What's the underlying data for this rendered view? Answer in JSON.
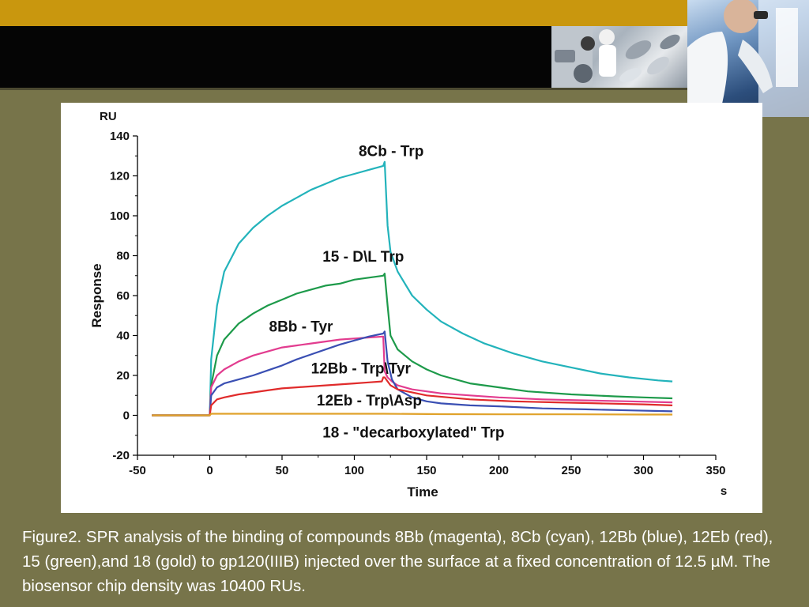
{
  "caption": "Figure2. SPR analysis of the binding of compounds 8Bb (magenta), 8Cb (cyan), 12Bb (blue), 12Eb (red), 15 (green),and 18 (gold) to gp120(IIIB) injected over the surface at a fixed concentration of 12.5 µM. The biosensor chip density was 10400 RUs.",
  "decor": {
    "header_gold": "#c9970e",
    "header_black": "#050505",
    "background": "#77744a"
  },
  "chart_data": {
    "type": "line",
    "ylabel": "Response",
    "xlabel": "Time",
    "y_unit": "RU",
    "x_unit": "s",
    "xlim": [
      -50,
      350
    ],
    "ylim": [
      -20,
      140
    ],
    "xticks": [
      -50,
      0,
      50,
      100,
      150,
      200,
      250,
      300,
      350
    ],
    "yticks": [
      -20,
      0,
      20,
      40,
      60,
      80,
      100,
      120,
      140
    ],
    "grid": false,
    "series": [
      {
        "name": "8Cb - Trp",
        "color": "#23b3bb",
        "x": [
          -40,
          0,
          1,
          5,
          10,
          20,
          30,
          40,
          50,
          60,
          70,
          80,
          90,
          100,
          110,
          120,
          121,
          123,
          125,
          130,
          140,
          150,
          160,
          175,
          190,
          210,
          230,
          250,
          270,
          290,
          310,
          320
        ],
        "y": [
          0,
          0,
          28,
          55,
          72,
          86,
          94,
          100,
          105,
          109,
          113,
          116,
          119,
          121,
          123,
          125,
          127,
          95,
          82,
          72,
          60,
          53,
          47,
          41,
          36,
          31,
          27,
          24,
          21,
          19,
          17.5,
          17
        ]
      },
      {
        "name": "15 - D\\L Trp",
        "color": "#1d9a4a",
        "x": [
          -40,
          0,
          1,
          5,
          10,
          20,
          30,
          40,
          50,
          60,
          70,
          80,
          90,
          100,
          110,
          120,
          121,
          123,
          125,
          130,
          140,
          150,
          160,
          180,
          200,
          220,
          250,
          280,
          300,
          320
        ],
        "y": [
          0,
          0,
          15,
          30,
          38,
          46,
          51,
          55,
          58,
          61,
          63,
          65,
          66,
          68,
          69,
          70,
          71,
          55,
          40,
          33,
          27,
          23,
          20,
          16,
          14,
          12,
          10.5,
          9.5,
          9,
          8.5
        ]
      },
      {
        "name": "8Bb - Tyr",
        "color": "#e23c8f",
        "x": [
          -40,
          0,
          1,
          5,
          10,
          20,
          30,
          40,
          50,
          60,
          70,
          80,
          90,
          100,
          110,
          120,
          121,
          123,
          126,
          130,
          140,
          150,
          160,
          180,
          200,
          230,
          260,
          290,
          320
        ],
        "y": [
          0,
          0,
          14,
          20,
          23,
          27,
          30,
          32,
          34,
          35,
          36,
          37,
          38,
          38.5,
          39,
          39.5,
          22,
          19,
          17,
          15,
          13,
          12,
          11,
          10,
          9,
          8,
          7.5,
          7,
          6.5
        ]
      },
      {
        "name": "12Bb - Trp\\Tyr",
        "color": "#3a4fb3",
        "x": [
          -40,
          0,
          1,
          5,
          10,
          20,
          30,
          40,
          50,
          60,
          70,
          80,
          90,
          100,
          110,
          120,
          121,
          123,
          126,
          130,
          140,
          150,
          160,
          180,
          200,
          230,
          260,
          290,
          320
        ],
        "y": [
          0,
          0,
          10,
          14,
          16,
          18,
          20,
          22.5,
          25,
          28,
          30.5,
          33,
          35.5,
          37.5,
          39.5,
          41,
          42,
          27,
          18,
          13,
          9,
          7,
          6,
          5,
          4.5,
          3.5,
          3,
          2.5,
          2
        ]
      },
      {
        "name": "12Eb - Trp\\Asp",
        "color": "#e02b2b",
        "x": [
          -40,
          0,
          1,
          5,
          10,
          20,
          30,
          40,
          50,
          60,
          70,
          80,
          90,
          100,
          110,
          119,
          120,
          121,
          125,
          130,
          150,
          180,
          210,
          240,
          270,
          300,
          320
        ],
        "y": [
          0,
          0,
          5,
          8,
          9,
          10.5,
          11.5,
          12.5,
          13.5,
          14,
          14.5,
          15,
          15.5,
          16,
          16.5,
          17,
          19,
          19,
          15,
          13,
          10,
          8,
          7,
          6.5,
          6,
          5.5,
          5
        ]
      },
      {
        "name": "18 - \"decarboxylated\" Trp",
        "color": "#e0a22a",
        "x": [
          -40,
          0,
          1,
          50,
          100,
          120,
          160,
          200,
          250,
          300,
          320
        ],
        "y": [
          0,
          0,
          0.8,
          0.8,
          0.8,
          0.8,
          0.6,
          0.5,
          0.5,
          0.4,
          0.4
        ]
      }
    ],
    "annotations": [
      {
        "text": "8Cb - Trp",
        "x": 103,
        "y": 130
      },
      {
        "text": "15 - D\\L Trp",
        "x": 78,
        "y": 77
      },
      {
        "text": "8Bb - Tyr",
        "x": 41,
        "y": 42
      },
      {
        "text": "12Bb - Trp\\Tyr",
        "x": 70,
        "y": 21
      },
      {
        "text": "12Eb - Trp\\Asp",
        "x": 74,
        "y": 5
      },
      {
        "text": "18 - \"decarboxylated\" Trp",
        "x": 78,
        "y": -11
      }
    ]
  }
}
